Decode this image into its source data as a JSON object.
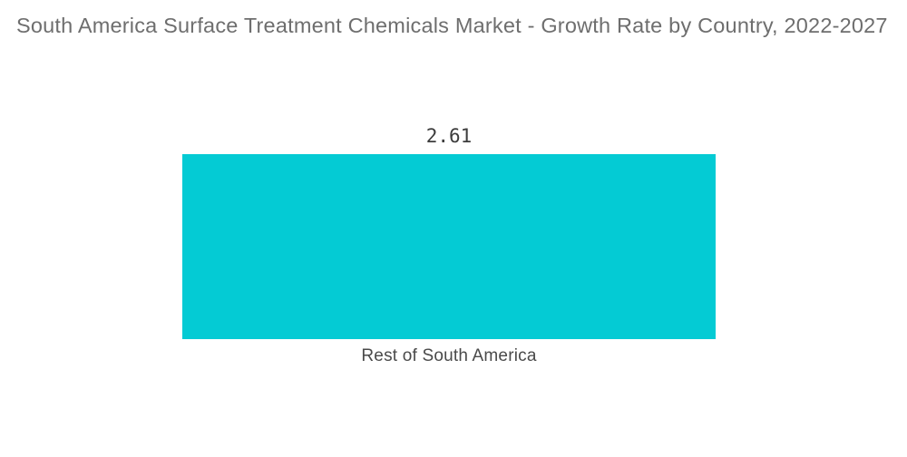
{
  "header": {
    "title": "South America Surface Treatment Chemicals Market - Growth Rate by Country, 2022-2027"
  },
  "colors": {
    "bar": "#04cbd4",
    "title_text": "#6e6e6e",
    "value_text": "#3c3c3c",
    "category_text": "#4a4a4a",
    "background": "#ffffff"
  },
  "chart_data": {
    "type": "bar",
    "title": "South America Surface Treatment Chemicals Market - Growth Rate by Country, 2022-2027",
    "categories": [
      "Rest of South America"
    ],
    "values": [
      2.61
    ],
    "value_labels": [
      "2.61"
    ],
    "xlabel": "",
    "ylabel": "",
    "ylim": [
      0,
      3
    ],
    "grid": false,
    "legend": false,
    "orientation": "vertical",
    "bar_color": "#04cbd4"
  }
}
